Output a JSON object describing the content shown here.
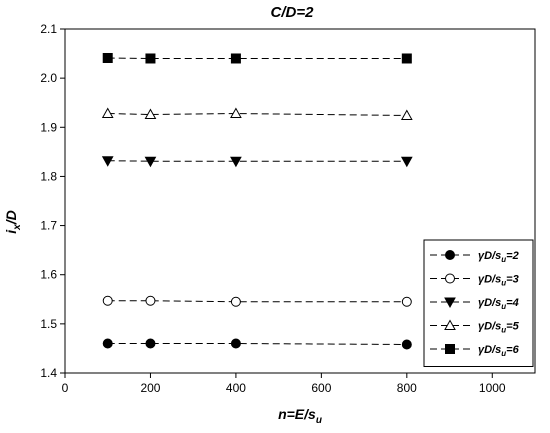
{
  "chart_data": {
    "type": "line",
    "title": "C/D=2",
    "xlabel": {
      "main": "n=E/s",
      "sub": "u"
    },
    "ylabel": {
      "main": "i",
      "sub": "x",
      "tail": "/D"
    },
    "xlim": [
      0,
      1100
    ],
    "ylim": [
      1.4,
      2.1
    ],
    "xticks": [
      0,
      200,
      400,
      600,
      800,
      1000
    ],
    "yticks": [
      1.4,
      1.5,
      1.6,
      1.7,
      1.8,
      1.9,
      2.0,
      2.1
    ],
    "xtick_labels": [
      "0",
      "200",
      "400",
      "600",
      "800",
      "1000"
    ],
    "ytick_labels": [
      "1.4",
      "1.5",
      "1.6",
      "1.7",
      "1.8",
      "1.9",
      "2.0",
      "2.1"
    ],
    "grid": false,
    "legend_position": "bottom-right",
    "x": [
      100,
      200,
      400,
      800
    ],
    "series": [
      {
        "name": "γD/su=2",
        "label_main": "γD/s",
        "label_sub": "u",
        "label_tail": "=2",
        "marker": "filled-circle",
        "values": [
          1.46,
          1.46,
          1.46,
          1.458
        ]
      },
      {
        "name": "γD/su=3",
        "label_main": "γD/s",
        "label_sub": "u",
        "label_tail": "=3",
        "marker": "open-circle",
        "values": [
          1.547,
          1.547,
          1.545,
          1.545
        ]
      },
      {
        "name": "γD/su=4",
        "label_main": "γD/s",
        "label_sub": "u",
        "label_tail": "=4",
        "marker": "filled-triangle-down",
        "values": [
          1.832,
          1.831,
          1.831,
          1.831
        ]
      },
      {
        "name": "γD/su=5",
        "label_main": "γD/s",
        "label_sub": "u",
        "label_tail": "=5",
        "marker": "open-triangle-up",
        "values": [
          1.928,
          1.926,
          1.928,
          1.924
        ]
      },
      {
        "name": "γD/su=6",
        "label_main": "γD/s",
        "label_sub": "u",
        "label_tail": "=6",
        "marker": "filled-square",
        "values": [
          2.041,
          2.04,
          2.04,
          2.04
        ]
      }
    ],
    "colors": {
      "line": "#000000",
      "marker_fill": "#000000",
      "marker_open_fill": "#ffffff"
    }
  }
}
